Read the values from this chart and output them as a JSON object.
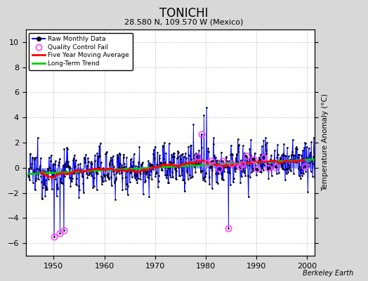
{
  "title": "TONICHI",
  "subtitle": "28.580 N, 109.570 W (Mexico)",
  "ylabel": "Temperature Anomaly (°C)",
  "credit": "Berkeley Earth",
  "xlim": [
    1944.5,
    2001.5
  ],
  "ylim": [
    -7,
    11
  ],
  "yticks": [
    -6,
    -4,
    -2,
    0,
    2,
    4,
    6,
    8,
    10
  ],
  "xticks": [
    1950,
    1960,
    1970,
    1980,
    1990,
    2000
  ],
  "bg_color": "#d8d8d8",
  "plot_bg_color": "#ffffff",
  "stem_color": "#7777ff",
  "line_color": "#0000ff",
  "qc_color": "#ff44ff",
  "ma_color": "#ff0000",
  "trend_color": "#00cc00",
  "seed": 12345,
  "years_start": 1945,
  "years_end": 2001
}
